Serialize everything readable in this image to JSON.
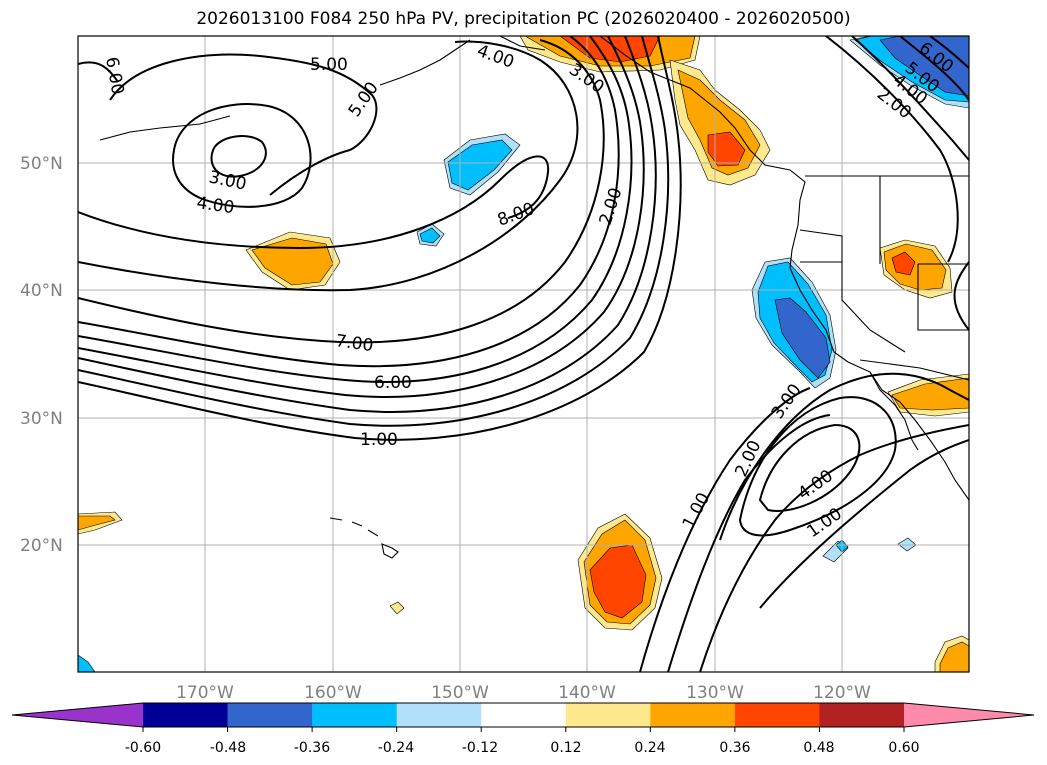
{
  "title": "2026013100 F084 250 hPa PV, precipitation PC (2026020400 - 2026020500)",
  "map": {
    "lon_labels": [
      "170°W",
      "160°W",
      "150°W",
      "140°W",
      "130°W",
      "120°W"
    ],
    "lat_labels": [
      "50°N",
      "40°N",
      "30°N",
      "20°N"
    ],
    "gridlines": true,
    "contour_labels": [
      "6.00",
      "5.00",
      "4.00",
      "3.00",
      "5.00",
      "3.00",
      "4.00",
      "8.00",
      "2.00",
      "7.00",
      "6.00",
      "1.00",
      "3.00",
      "2.00",
      "1.00",
      "4.00",
      "1.00",
      "6.00",
      "5.00",
      "4.00",
      "2.00"
    ]
  },
  "colorbar": {
    "tick_labels": [
      "-0.60",
      "-0.48",
      "-0.36",
      "-0.24",
      "-0.12",
      "0.12",
      "0.24",
      "0.36",
      "0.48",
      "0.60"
    ],
    "colors": [
      "#9933cc",
      "#000099",
      "#3366cc",
      "#00bfff",
      "#b0e0fa",
      "#ffffff",
      "#ffe98c",
      "#ffa500",
      "#ff4500",
      "#b22222",
      "#ff8aab"
    ]
  }
}
